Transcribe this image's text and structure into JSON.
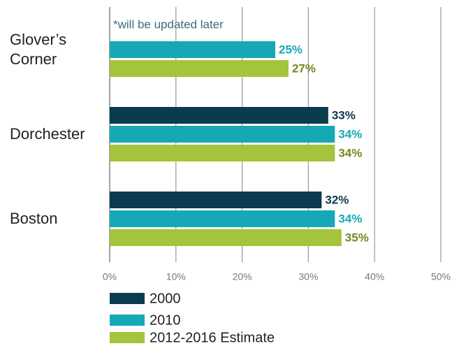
{
  "chart_data": {
    "type": "bar",
    "orientation": "horizontal",
    "annotation": "*will be updated later",
    "categories": [
      "Glover’s Corner",
      "Dorchester",
      "Boston"
    ],
    "series": [
      {
        "name": "2000",
        "color": "#0b3b4f",
        "label_color": "#0b3b4f",
        "values": [
          null,
          33,
          32
        ],
        "value_labels": [
          null,
          "33%",
          "32%"
        ]
      },
      {
        "name": "2010",
        "color": "#17a8b5",
        "label_color": "#17a8b5",
        "values": [
          25,
          34,
          34
        ],
        "value_labels": [
          "25%",
          "34%",
          "34%"
        ]
      },
      {
        "name": "2012-2016 Estimate",
        "color": "#a3c43b",
        "label_color": "#6f8a1f",
        "values": [
          27,
          34,
          35
        ],
        "value_labels": [
          "27%",
          "34%",
          "35%"
        ]
      }
    ],
    "xlim": [
      0,
      50
    ],
    "xticks": [
      {
        "value": 0,
        "label": "0%"
      },
      {
        "value": 10,
        "label": "10%"
      },
      {
        "value": 20,
        "label": "20%"
      },
      {
        "value": 30,
        "label": "30%"
      },
      {
        "value": 40,
        "label": "40%"
      },
      {
        "value": 50,
        "label": "50%"
      }
    ],
    "grid": true
  }
}
